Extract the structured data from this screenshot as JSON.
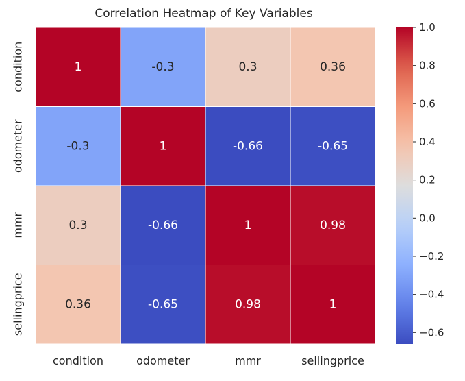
{
  "chart_data": {
    "type": "heatmap",
    "title": "Correlation Heatmap of Key Variables",
    "x_categories": [
      "condition",
      "odometer",
      "mmr",
      "sellingprice"
    ],
    "y_categories": [
      "condition",
      "odometer",
      "mmr",
      "sellingprice"
    ],
    "values": [
      [
        1,
        -0.3,
        0.3,
        0.36
      ],
      [
        -0.3,
        1,
        -0.66,
        -0.65
      ],
      [
        0.3,
        -0.66,
        1,
        0.98
      ],
      [
        0.36,
        -0.65,
        0.98,
        1
      ]
    ],
    "value_labels": [
      [
        "1",
        "-0.3",
        "0.3",
        "0.36"
      ],
      [
        "-0.3",
        "1",
        "-0.66",
        "-0.65"
      ],
      [
        "0.3",
        "-0.66",
        "1",
        "0.98"
      ],
      [
        "0.36",
        "-0.65",
        "0.98",
        "1"
      ]
    ],
    "colormap": "coolwarm",
    "colorbar": {
      "range": [
        -0.66,
        1.0
      ],
      "ticks": [
        1.0,
        0.8,
        0.6,
        0.4,
        0.2,
        0.0,
        -0.2,
        -0.4,
        -0.6
      ],
      "tick_labels": [
        "1.0",
        "0.8",
        "0.6",
        "0.4",
        "0.2",
        "0.0",
        "−0.2",
        "−0.4",
        "−0.6"
      ]
    },
    "grid": true,
    "cell_border_color": "#ffffff"
  }
}
